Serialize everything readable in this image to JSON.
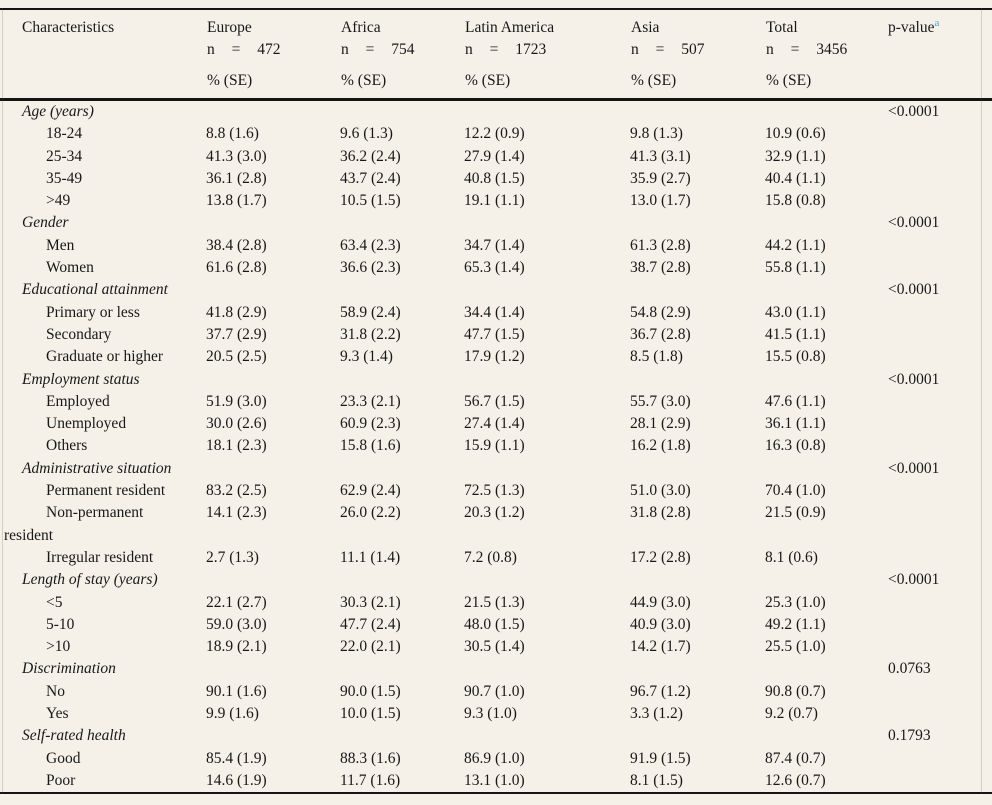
{
  "colors": {
    "background": "#f5f1e8",
    "text": "#181818",
    "rule": "#141414",
    "footnote_accent": "#4da3d6"
  },
  "table": {
    "header": {
      "characteristics": "Characteristics",
      "columns": [
        {
          "name": "Europe",
          "n": "n = 472",
          "pct": "% (SE)"
        },
        {
          "name": "Africa",
          "n": "n = 754",
          "pct": "% (SE)"
        },
        {
          "name": "Latin America",
          "n": "n = 1723",
          "pct": "% (SE)"
        },
        {
          "name": "Asia",
          "n": "n = 507",
          "pct": "% (SE)"
        },
        {
          "name": "Total",
          "n": "n = 3456",
          "pct": "% (SE)"
        }
      ],
      "pvalue_label": "p-value",
      "pvalue_sup": "a"
    },
    "sections": [
      {
        "label": "Age (years)",
        "pvalue": "<0.0001",
        "rows": [
          {
            "label": "18-24",
            "values": [
              "8.8 (1.6)",
              "9.6 (1.3)",
              "12.2 (0.9)",
              "9.8 (1.3)",
              "10.9 (0.6)"
            ]
          },
          {
            "label": "25-34",
            "values": [
              "41.3 (3.0)",
              "36.2 (2.4)",
              "27.9 (1.4)",
              "41.3 (3.1)",
              "32.9 (1.1)"
            ]
          },
          {
            "label": "35-49",
            "values": [
              "36.1 (2.8)",
              "43.7 (2.4)",
              "40.8 (1.5)",
              "35.9 (2.7)",
              "40.4 (1.1)"
            ]
          },
          {
            "label": ">49",
            "values": [
              "13.8 (1.7)",
              "10.5 (1.5)",
              "19.1 (1.1)",
              "13.0 (1.7)",
              "15.8 (0.8)"
            ]
          }
        ]
      },
      {
        "label": "Gender",
        "pvalue": "<0.0001",
        "rows": [
          {
            "label": "Men",
            "values": [
              "38.4 (2.8)",
              "63.4 (2.3)",
              "34.7 (1.4)",
              "61.3 (2.8)",
              "44.2 (1.1)"
            ]
          },
          {
            "label": "Women",
            "values": [
              "61.6 (2.8)",
              "36.6 (2.3)",
              "65.3 (1.4)",
              "38.7 (2.8)",
              "55.8 (1.1)"
            ]
          }
        ]
      },
      {
        "label": "Educational attainment",
        "pvalue": "<0.0001",
        "rows": [
          {
            "label": "Primary or less",
            "values": [
              "41.8 (2.9)",
              "58.9 (2.4)",
              "34.4 (1.4)",
              "54.8 (2.9)",
              "43.0 (1.1)"
            ]
          },
          {
            "label": "Secondary",
            "values": [
              "37.7 (2.9)",
              "31.8 (2.2)",
              "47.7 (1.5)",
              "36.7 (2.8)",
              "41.5 (1.1)"
            ]
          },
          {
            "label": "Graduate or higher",
            "values": [
              "20.5 (2.5)",
              "9.3 (1.4)",
              "17.9 (1.2)",
              "8.5 (1.8)",
              "15.5 (0.8)"
            ]
          }
        ]
      },
      {
        "label": "Employment status",
        "pvalue": "<0.0001",
        "rows": [
          {
            "label": "Employed",
            "values": [
              "51.9 (3.0)",
              "23.3 (2.1)",
              "56.7 (1.5)",
              "55.7 (3.0)",
              "47.6 (1.1)"
            ]
          },
          {
            "label": "Unemployed",
            "values": [
              "30.0 (2.6)",
              "60.9 (2.3)",
              "27.4 (1.4)",
              "28.1 (2.9)",
              "36.1 (1.1)"
            ]
          },
          {
            "label": "Others",
            "values": [
              "18.1 (2.3)",
              "15.8 (1.6)",
              "15.9 (1.1)",
              "16.2 (1.8)",
              "16.3 (0.8)"
            ]
          }
        ]
      },
      {
        "label": "Administrative situation",
        "pvalue": "<0.0001",
        "rows": [
          {
            "label": "Permanent resident",
            "values": [
              "83.2 (2.5)",
              "62.9 (2.4)",
              "72.5 (1.3)",
              "51.0 (3.0)",
              "70.4 (1.0)"
            ]
          },
          {
            "label": "Non-permanent resident",
            "values": [
              "14.1 (2.3)",
              "26.0 (2.2)",
              "20.3 (1.2)",
              "31.8 (2.8)",
              "21.5 (0.9)"
            ]
          },
          {
            "label": "Irregular resident",
            "values": [
              "2.7 (1.3)",
              "11.1 (1.4)",
              "7.2 (0.8)",
              "17.2 (2.8)",
              "8.1 (0.6)"
            ]
          }
        ]
      },
      {
        "label": "Length of stay (years)",
        "pvalue": "<0.0001",
        "rows": [
          {
            "label": "<5",
            "values": [
              "22.1 (2.7)",
              "30.3 (2.1)",
              "21.5 (1.3)",
              "44.9 (3.0)",
              "25.3 (1.0)"
            ]
          },
          {
            "label": "5-10",
            "values": [
              "59.0 (3.0)",
              "47.7 (2.4)",
              "48.0 (1.5)",
              "40.9 (3.0)",
              "49.2 (1.1)"
            ]
          },
          {
            "label": ">10",
            "values": [
              "18.9 (2.1)",
              "22.0 (2.1)",
              "30.5 (1.4)",
              "14.2 (1.7)",
              "25.5 (1.0)"
            ]
          }
        ]
      },
      {
        "label": "Discrimination",
        "pvalue": "0.0763",
        "rows": [
          {
            "label": "No",
            "values": [
              "90.1 (1.6)",
              "90.0 (1.5)",
              "90.7 (1.0)",
              "96.7 (1.2)",
              "90.8 (0.7)"
            ]
          },
          {
            "label": "Yes",
            "values": [
              "9.9 (1.6)",
              "10.0 (1.5)",
              "9.3 (1.0)",
              "3.3 (1.2)",
              "9.2 (0.7)"
            ]
          }
        ]
      },
      {
        "label": "Self-rated health",
        "pvalue": "0.1793",
        "rows": [
          {
            "label": "Good",
            "values": [
              "85.4 (1.9)",
              "88.3 (1.6)",
              "86.9 (1.0)",
              "91.9 (1.5)",
              "87.4 (0.7)"
            ]
          },
          {
            "label": "Poor",
            "values": [
              "14.6 (1.9)",
              "11.7 (1.6)",
              "13.1 (1.0)",
              "8.1 (1.5)",
              "12.6 (0.7)"
            ]
          }
        ]
      }
    ]
  }
}
